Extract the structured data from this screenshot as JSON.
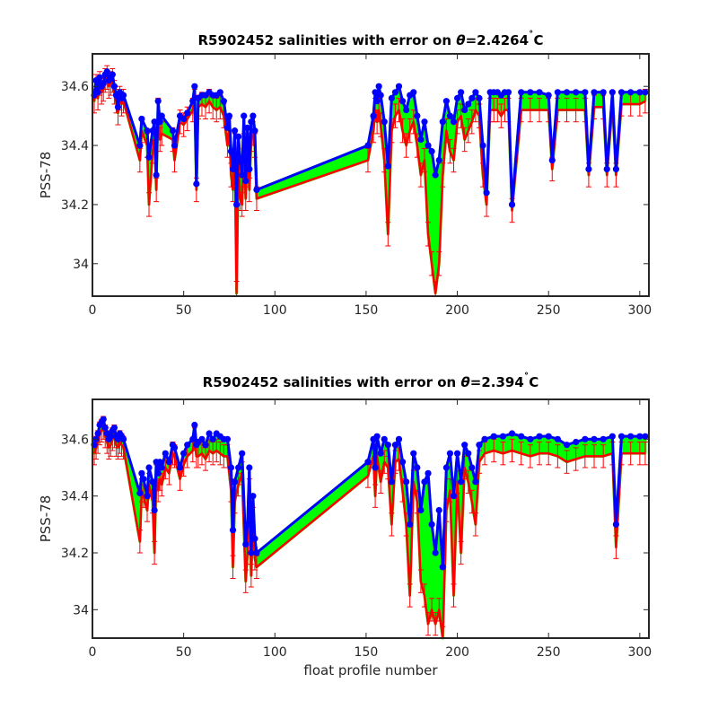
{
  "figure": {
    "xlabel": "float profile number"
  },
  "chart_data": [
    {
      "type": "line",
      "title": "R5902452 salinities with error on θ=2.4264˚C",
      "title_prefix": "R5902452 salinities with error on ",
      "title_theta": "θ",
      "title_value": "=2.4264",
      "title_degree": "˚",
      "title_unit": "C",
      "ylabel": "PSS-78",
      "xlim": [
        0,
        305
      ],
      "ylim": [
        33.89,
        34.71
      ],
      "xticks": [
        "0",
        "50",
        "100",
        "150",
        "200",
        "250",
        "300"
      ],
      "xtick_values": [
        0,
        50,
        100,
        150,
        200,
        250,
        300
      ],
      "yticks": [
        "34",
        "34.2",
        "34.4",
        "34.6"
      ],
      "ytick_values": [
        34.0,
        34.2,
        34.4,
        34.6
      ],
      "colors": {
        "calibrated": "#0000ff",
        "raw": "#ff0000",
        "band": "#00ff00",
        "errorbar": "#ff0000"
      },
      "series": [
        {
          "role": "calibrated",
          "x": [
            1,
            2,
            3,
            4,
            5,
            6,
            7,
            8,
            9,
            10,
            11,
            12,
            13,
            14,
            15,
            16,
            17,
            26,
            27,
            30,
            31,
            33,
            34,
            35,
            36,
            37,
            38,
            44,
            45,
            48,
            50,
            52,
            55,
            56,
            57,
            58,
            60,
            62,
            64,
            66,
            68,
            70,
            72,
            74,
            75,
            76,
            77,
            78,
            79,
            80,
            81,
            82,
            83,
            84,
            85,
            86,
            87,
            88,
            89,
            90,
            151,
            154,
            155,
            156,
            157,
            158,
            160,
            162,
            164,
            166,
            168,
            170,
            172,
            174,
            176,
            178,
            180,
            182,
            184,
            186,
            188,
            190,
            192,
            194,
            196,
            198,
            200,
            202,
            204,
            206,
            208,
            210,
            212,
            214,
            216,
            218,
            220,
            222,
            224,
            226,
            228,
            230,
            235,
            240,
            245,
            250,
            252,
            255,
            260,
            265,
            270,
            272,
            275,
            280,
            282,
            285,
            287,
            290,
            295,
            300,
            303
          ],
          "values": [
            34.57,
            34.62,
            34.58,
            34.63,
            34.6,
            34.61,
            34.64,
            34.65,
            34.62,
            34.63,
            34.64,
            34.6,
            34.57,
            34.53,
            34.58,
            34.56,
            34.57,
            34.4,
            34.49,
            34.45,
            34.36,
            34.45,
            34.48,
            34.3,
            34.55,
            34.48,
            34.5,
            34.45,
            34.4,
            34.5,
            34.49,
            34.51,
            34.55,
            34.6,
            34.27,
            34.56,
            34.57,
            34.57,
            34.58,
            34.57,
            34.57,
            34.58,
            34.55,
            34.46,
            34.5,
            34.38,
            34.32,
            34.45,
            34.2,
            34.43,
            34.35,
            34.3,
            34.5,
            34.28,
            34.46,
            34.32,
            34.48,
            34.5,
            34.45,
            34.25,
            34.4,
            34.5,
            34.58,
            34.55,
            34.6,
            34.57,
            34.48,
            34.33,
            34.56,
            34.58,
            34.6,
            34.55,
            34.52,
            34.57,
            34.58,
            34.5,
            34.42,
            34.48,
            34.4,
            34.38,
            34.3,
            34.35,
            34.48,
            34.55,
            34.5,
            34.48,
            34.56,
            34.58,
            34.52,
            34.54,
            34.56,
            34.58,
            34.56,
            34.4,
            34.24,
            34.58,
            34.58,
            34.58,
            34.57,
            34.58,
            34.58,
            34.2,
            34.58,
            34.58,
            34.58,
            34.57,
            34.35,
            34.58,
            34.58,
            34.58,
            34.58,
            34.32,
            34.58,
            34.58,
            34.32,
            34.58,
            34.32,
            34.58,
            34.58,
            34.58,
            34.58
          ]
        },
        {
          "role": "raw",
          "x": [
            1,
            2,
            3,
            4,
            5,
            6,
            7,
            8,
            9,
            10,
            11,
            12,
            13,
            14,
            15,
            16,
            17,
            26,
            27,
            30,
            31,
            33,
            34,
            35,
            36,
            37,
            38,
            44,
            45,
            48,
            50,
            52,
            55,
            56,
            57,
            58,
            60,
            62,
            64,
            66,
            68,
            70,
            72,
            74,
            75,
            76,
            77,
            78,
            79,
            80,
            81,
            82,
            83,
            84,
            85,
            86,
            87,
            88,
            89,
            90,
            151,
            154,
            155,
            156,
            157,
            158,
            160,
            162,
            164,
            166,
            168,
            170,
            172,
            174,
            176,
            178,
            180,
            182,
            184,
            186,
            188,
            190,
            192,
            194,
            196,
            198,
            200,
            202,
            204,
            206,
            208,
            210,
            212,
            214,
            216,
            218,
            220,
            222,
            224,
            226,
            228,
            230,
            235,
            240,
            245,
            250,
            252,
            255,
            260,
            265,
            270,
            272,
            275,
            280,
            282,
            285,
            287,
            290,
            295,
            300,
            303
          ],
          "values": [
            34.55,
            34.6,
            34.56,
            34.61,
            34.58,
            34.59,
            34.62,
            34.63,
            34.6,
            34.61,
            34.62,
            34.58,
            34.55,
            34.51,
            34.56,
            34.54,
            34.55,
            34.35,
            34.45,
            34.4,
            34.2,
            34.38,
            34.42,
            34.25,
            34.52,
            34.42,
            34.44,
            34.42,
            34.35,
            34.48,
            34.47,
            34.49,
            34.52,
            34.55,
            34.25,
            34.53,
            34.54,
            34.53,
            34.55,
            34.53,
            34.52,
            34.53,
            34.5,
            34.4,
            34.45,
            34.3,
            34.25,
            34.4,
            33.9,
            34.35,
            34.22,
            34.2,
            34.4,
            34.22,
            34.4,
            34.25,
            34.42,
            34.44,
            34.4,
            34.22,
            34.35,
            34.45,
            34.52,
            34.48,
            34.52,
            34.47,
            34.35,
            34.1,
            34.45,
            34.5,
            34.52,
            34.45,
            34.4,
            34.45,
            34.48,
            34.4,
            34.3,
            34.35,
            34.1,
            34.0,
            33.9,
            34.0,
            34.3,
            34.45,
            34.38,
            34.35,
            34.48,
            34.5,
            34.42,
            34.45,
            34.48,
            34.52,
            34.5,
            34.3,
            34.2,
            34.52,
            34.52,
            34.52,
            34.5,
            34.52,
            34.52,
            34.18,
            34.52,
            34.52,
            34.52,
            34.52,
            34.32,
            34.52,
            34.52,
            34.52,
            34.52,
            34.3,
            34.53,
            34.53,
            34.3,
            34.54,
            34.3,
            34.54,
            34.54,
            34.54,
            34.55
          ]
        }
      ],
      "errorbar_halfwidth": 0.04
    },
    {
      "type": "line",
      "title": "R5902452 salinities with error on θ=2.394˚C",
      "title_prefix": "R5902452 salinities with error on ",
      "title_theta": "θ",
      "title_value": "=2.394",
      "title_degree": "˚",
      "title_unit": "C",
      "ylabel": "PSS-78",
      "xlim": [
        0,
        305
      ],
      "ylim": [
        33.9,
        34.74
      ],
      "xticks": [
        "0",
        "50",
        "100",
        "150",
        "200",
        "250",
        "300"
      ],
      "xtick_values": [
        0,
        50,
        100,
        150,
        200,
        250,
        300
      ],
      "yticks": [
        "34",
        "34.2",
        "34.4",
        "34.6"
      ],
      "ytick_values": [
        34.0,
        34.2,
        34.4,
        34.6
      ],
      "colors": {
        "calibrated": "#0000ff",
        "raw": "#ff0000",
        "band": "#00ff00",
        "errorbar": "#ff0000"
      },
      "series": [
        {
          "role": "calibrated",
          "x": [
            1,
            2,
            3,
            4,
            5,
            6,
            7,
            8,
            9,
            10,
            11,
            12,
            13,
            14,
            15,
            16,
            17,
            26,
            27,
            28,
            30,
            31,
            33,
            34,
            35,
            36,
            37,
            38,
            40,
            42,
            44,
            45,
            48,
            50,
            52,
            55,
            56,
            57,
            58,
            60,
            62,
            64,
            66,
            68,
            70,
            72,
            74,
            76,
            77,
            78,
            80,
            82,
            84,
            85,
            86,
            87,
            88,
            89,
            90,
            151,
            154,
            155,
            156,
            158,
            160,
            162,
            164,
            166,
            168,
            170,
            172,
            174,
            176,
            178,
            180,
            182,
            184,
            186,
            188,
            190,
            192,
            194,
            196,
            198,
            200,
            202,
            204,
            206,
            208,
            210,
            212,
            215,
            220,
            225,
            230,
            235,
            240,
            245,
            250,
            255,
            260,
            265,
            270,
            275,
            280,
            285,
            287,
            290,
            295,
            300,
            303
          ],
          "values": [
            34.58,
            34.6,
            34.62,
            34.65,
            34.66,
            34.67,
            34.64,
            34.62,
            34.6,
            34.61,
            34.63,
            34.64,
            34.61,
            34.6,
            34.62,
            34.61,
            34.6,
            34.41,
            34.48,
            34.46,
            34.4,
            34.5,
            34.45,
            34.35,
            34.52,
            34.48,
            34.52,
            34.5,
            34.55,
            34.52,
            34.58,
            34.57,
            34.5,
            34.55,
            34.58,
            34.6,
            34.65,
            34.58,
            34.59,
            34.6,
            34.58,
            34.62,
            34.6,
            34.62,
            34.61,
            34.6,
            34.6,
            34.5,
            34.28,
            34.45,
            34.5,
            34.55,
            34.23,
            34.3,
            34.5,
            34.2,
            34.4,
            34.25,
            34.2,
            34.52,
            34.6,
            34.5,
            34.61,
            34.55,
            34.6,
            34.58,
            34.45,
            34.58,
            34.6,
            34.52,
            34.45,
            34.3,
            34.55,
            34.5,
            34.35,
            34.45,
            34.48,
            34.3,
            34.2,
            34.35,
            34.15,
            34.5,
            34.55,
            34.4,
            34.55,
            34.45,
            34.58,
            34.55,
            34.5,
            34.45,
            34.58,
            34.6,
            34.61,
            34.61,
            34.62,
            34.61,
            34.6,
            34.61,
            34.61,
            34.6,
            34.58,
            34.59,
            34.6,
            34.6,
            34.6,
            34.61,
            34.3,
            34.61,
            34.61,
            34.61,
            34.61
          ]
        },
        {
          "role": "raw",
          "x": [
            1,
            2,
            3,
            4,
            5,
            6,
            7,
            8,
            9,
            10,
            11,
            12,
            13,
            14,
            15,
            16,
            17,
            26,
            27,
            28,
            30,
            31,
            33,
            34,
            35,
            36,
            37,
            38,
            40,
            42,
            44,
            45,
            48,
            50,
            52,
            55,
            56,
            57,
            58,
            60,
            62,
            64,
            66,
            68,
            70,
            72,
            74,
            76,
            77,
            78,
            80,
            82,
            84,
            85,
            86,
            87,
            88,
            89,
            90,
            151,
            154,
            155,
            156,
            158,
            160,
            162,
            164,
            166,
            168,
            170,
            172,
            174,
            176,
            178,
            180,
            182,
            184,
            186,
            188,
            190,
            192,
            194,
            196,
            198,
            200,
            202,
            204,
            206,
            208,
            210,
            212,
            215,
            220,
            225,
            230,
            235,
            240,
            245,
            250,
            255,
            260,
            265,
            270,
            275,
            280,
            285,
            287,
            290,
            295,
            300,
            303
          ],
          "values": [
            34.55,
            34.57,
            34.59,
            34.62,
            34.63,
            34.64,
            34.61,
            34.59,
            34.57,
            34.58,
            34.6,
            34.61,
            34.58,
            34.57,
            34.59,
            34.58,
            34.57,
            34.24,
            34.42,
            34.4,
            34.35,
            34.44,
            34.38,
            34.2,
            34.47,
            34.42,
            34.46,
            34.44,
            34.5,
            34.48,
            34.55,
            34.54,
            34.46,
            34.51,
            34.54,
            34.56,
            34.6,
            34.54,
            34.54,
            34.55,
            34.53,
            34.56,
            34.55,
            34.56,
            34.55,
            34.54,
            34.54,
            34.42,
            34.15,
            34.38,
            34.44,
            34.48,
            34.1,
            34.2,
            34.42,
            34.12,
            34.32,
            34.18,
            34.15,
            34.47,
            34.54,
            34.4,
            34.54,
            34.45,
            34.52,
            34.5,
            34.3,
            34.52,
            34.53,
            34.42,
            34.3,
            34.05,
            34.45,
            34.38,
            34.1,
            34.05,
            33.95,
            34.0,
            33.95,
            34.0,
            33.9,
            34.35,
            34.42,
            34.05,
            34.45,
            34.2,
            34.5,
            34.45,
            34.38,
            34.3,
            34.52,
            34.55,
            34.56,
            34.55,
            34.56,
            34.55,
            34.54,
            34.55,
            34.55,
            34.54,
            34.52,
            34.53,
            34.54,
            34.54,
            34.54,
            34.55,
            34.22,
            34.55,
            34.55,
            34.55,
            34.55
          ]
        }
      ],
      "errorbar_halfwidth": 0.04
    }
  ]
}
